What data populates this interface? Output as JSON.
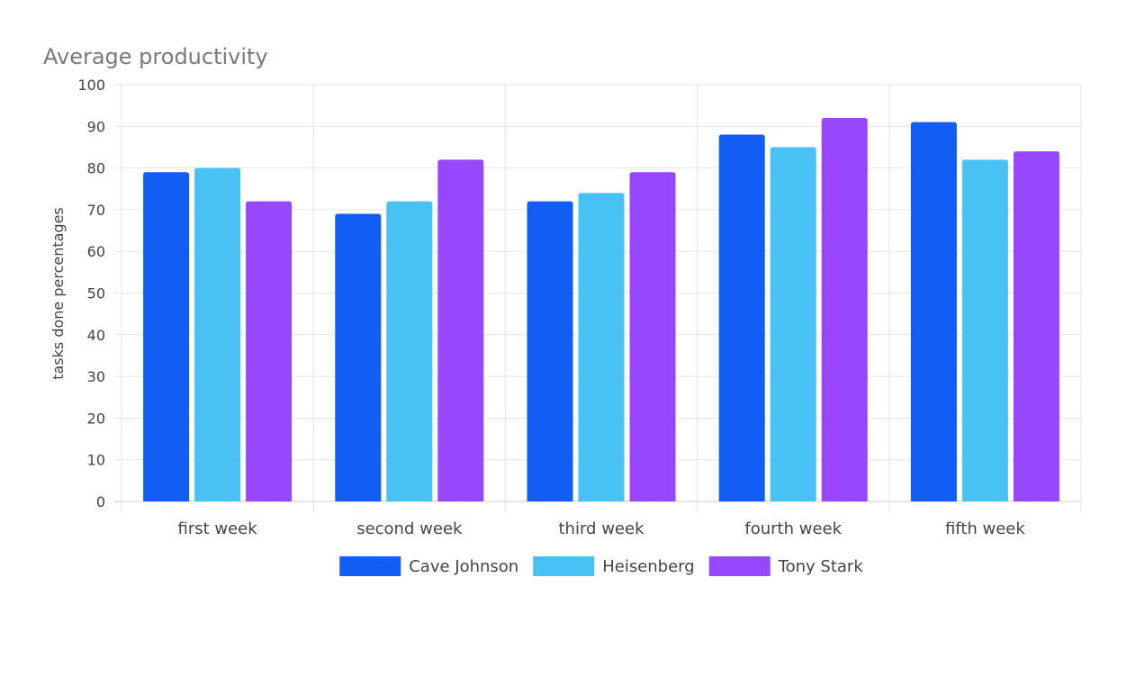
{
  "chart_data": {
    "type": "bar",
    "title": "Average productivity",
    "xlabel": "",
    "ylabel": "tasks done percentages",
    "ylim": [
      0,
      100
    ],
    "yticks": [
      0,
      10,
      20,
      30,
      40,
      50,
      60,
      70,
      80,
      90,
      100
    ],
    "categories": [
      "first week",
      "second week",
      "third week",
      "fourth week",
      "fifth week"
    ],
    "series": [
      {
        "name": "Cave Johnson",
        "color": "#125df4",
        "values": [
          79,
          69,
          72,
          88,
          91
        ]
      },
      {
        "name": "Heisenberg",
        "color": "#48c1f4",
        "values": [
          80,
          72,
          74,
          85,
          82
        ]
      },
      {
        "name": "Tony Stark",
        "color": "#9747fd",
        "values": [
          72,
          82,
          79,
          92,
          84
        ]
      }
    ],
    "grid": true,
    "legend": "bottom-center"
  }
}
